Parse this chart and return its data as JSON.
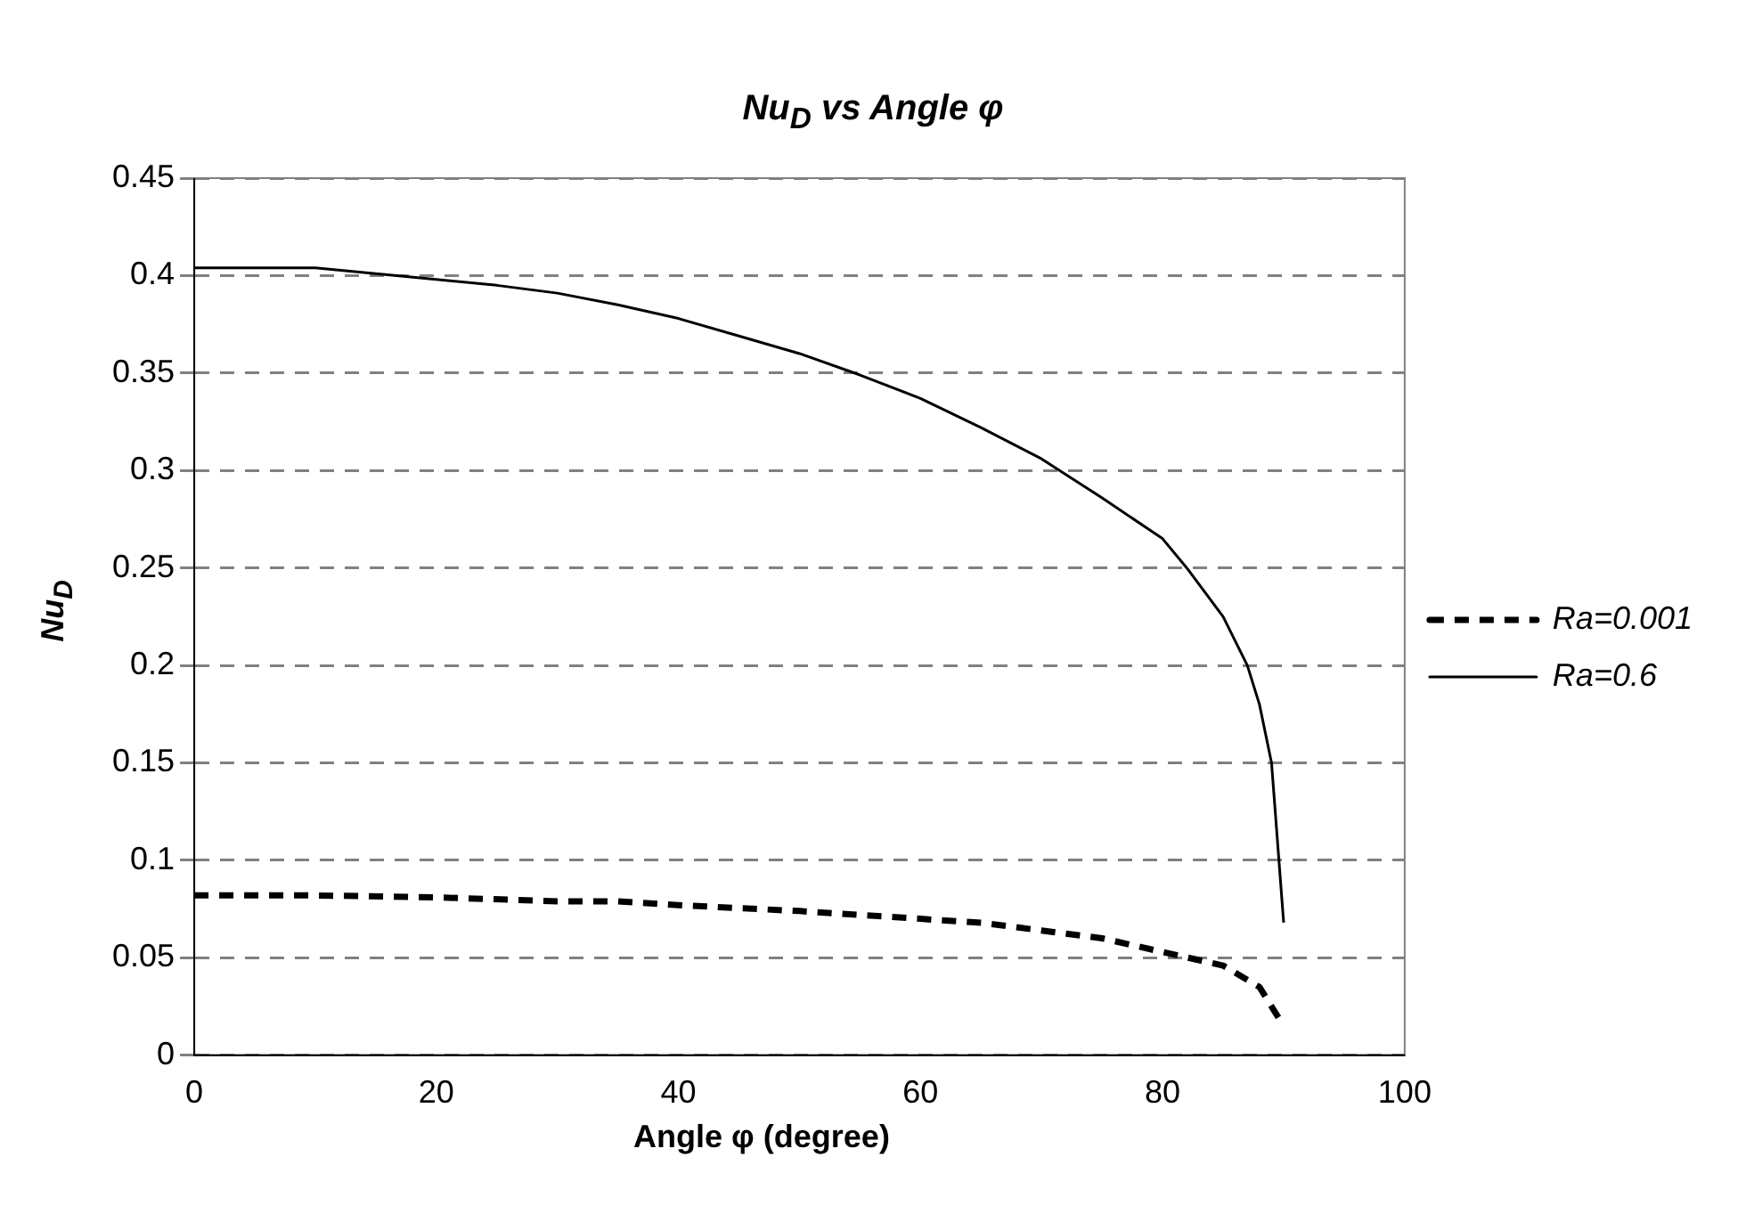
{
  "chart_data": {
    "type": "line",
    "title": "Nu$_{D}$ vs Angle φ",
    "xlabel": "Angle φ (degree)",
    "ylabel": "Nu$_{D}$",
    "xlim": [
      0,
      100
    ],
    "xticks": [
      0,
      20,
      40,
      60,
      80,
      100
    ],
    "ylim": [
      0,
      0.45
    ],
    "yticks": [
      0,
      0.05,
      0.1,
      0.15,
      0.2,
      0.25,
      0.3,
      0.35,
      0.4,
      0.45
    ],
    "grid": "y",
    "legend": "right",
    "marker": "none",
    "series": [
      {
        "name": "Ra=0.001",
        "color": "#000000",
        "line_style": "dashed",
        "x": [
          0,
          10,
          20,
          30,
          35,
          40,
          50,
          60,
          65,
          70,
          75,
          80,
          85,
          88,
          90
        ],
        "values": [
          0.082,
          0.082,
          0.081,
          0.079,
          0.079,
          0.077,
          0.074,
          0.07,
          0.068,
          0.064,
          0.06,
          0.053,
          0.046,
          0.035,
          0.015
        ]
      },
      {
        "name": "Ra=0.6",
        "color": "#000000",
        "line_style": "solid",
        "x": [
          0,
          10,
          15,
          20,
          25,
          30,
          35,
          40,
          45,
          50,
          55,
          60,
          65,
          70,
          75,
          80,
          82,
          85,
          87,
          88,
          89,
          90
        ],
        "values": [
          0.404,
          0.404,
          0.401,
          0.398,
          0.395,
          0.391,
          0.385,
          0.378,
          0.369,
          0.36,
          0.349,
          0.337,
          0.322,
          0.306,
          0.286,
          0.265,
          0.25,
          0.225,
          0.2,
          0.18,
          0.15,
          0.068
        ]
      }
    ]
  }
}
